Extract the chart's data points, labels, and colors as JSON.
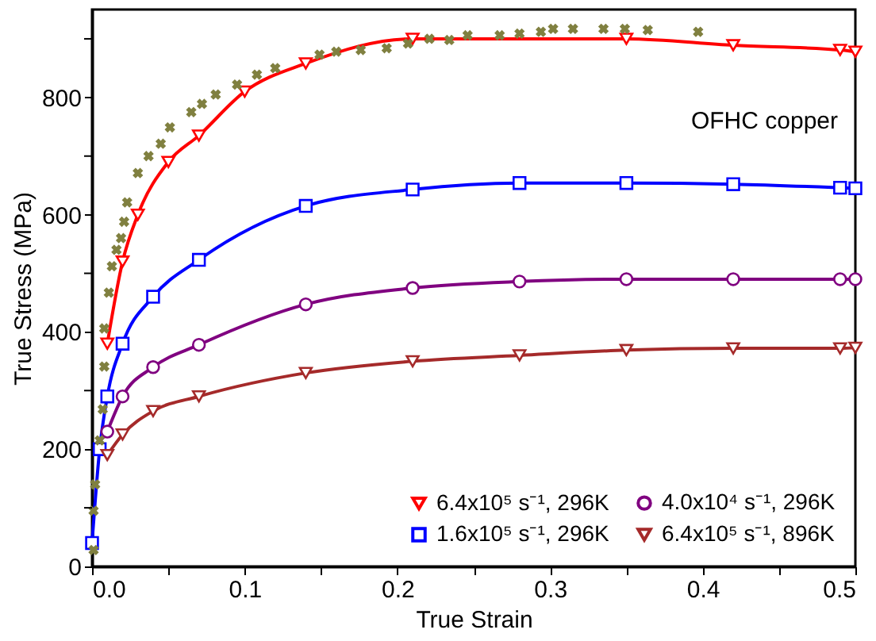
{
  "chart_data": {
    "type": "line",
    "xlabel": "True Strain",
    "ylabel": "True Stress (MPa)",
    "annotations": [
      "OFHC copper"
    ],
    "xlim": [
      0,
      0.5
    ],
    "ylim": [
      0,
      950
    ],
    "xticks": [
      {
        "value": 0,
        "label": "0.0"
      },
      {
        "value": 0.05,
        "label": null
      },
      0.1,
      {
        "value": 0.15,
        "label": null
      },
      0.2,
      {
        "value": 0.25,
        "label": null
      },
      0.3,
      {
        "value": 0.35,
        "label": null
      },
      0.4,
      {
        "value": 0.45,
        "label": null
      },
      0.5
    ],
    "line_style": "solid",
    "yticks": [
      0,
      {
        "value": 100,
        "label": null
      },
      200,
      {
        "value": 300,
        "label": null
      },
      400,
      {
        "value": 500,
        "label": null
      },
      600,
      {
        "value": 700,
        "label": null
      },
      800,
      {
        "value": 900,
        "label": null
      }
    ],
    "grid": false,
    "legend": "bottom right",
    "series": [
      {
        "name": "6.4x10⁵ s⁻¹, 296K",
        "color": "#ff0000",
        "marker": "triangle",
        "x": [
          0.01,
          0.02,
          0.03,
          0.05,
          0.07,
          0.1,
          0.14,
          0.21,
          0.35,
          0.42,
          0.49,
          0.5
        ],
        "values": [
          380,
          520,
          600,
          690,
          735,
          810,
          858,
          900,
          900,
          889,
          881,
          878
        ]
      },
      {
        "name": "1.6x10⁵ s⁻¹, 296K",
        "color": "#0000ff",
        "marker": "square",
        "x": [
          0,
          0.005,
          0.01,
          0.02,
          0.04,
          0.07,
          0.14,
          0.21,
          0.28,
          0.35,
          0.42,
          0.49,
          0.5
        ],
        "values": [
          40,
          200,
          290,
          380,
          460,
          523,
          615,
          643,
          654,
          654,
          652,
          646,
          645
        ]
      },
      {
        "name": "4.0x10⁴ s⁻¹, 296K",
        "color": "#800080",
        "marker": "circle",
        "x": [
          0.01,
          0.02,
          0.04,
          0.07,
          0.14,
          0.21,
          0.28,
          0.35,
          0.42,
          0.49,
          0.5
        ],
        "values": [
          230,
          290,
          340,
          378,
          447,
          475,
          486,
          490,
          490,
          490,
          490
        ]
      },
      {
        "name": "6.4x10⁵ s⁻¹, 896K",
        "color": "#a52a2a",
        "marker": "triangle",
        "x": [
          0.01,
          0.02,
          0.04,
          0.07,
          0.14,
          0.21,
          0.28,
          0.35,
          0.42,
          0.49,
          0.5
        ],
        "values": [
          190,
          225,
          265,
          290,
          330,
          350,
          360,
          369,
          372,
          372,
          373
        ]
      },
      {
        "type": "scatter",
        "color": "#808040",
        "marker": "cross",
        "x": [
          0.001,
          0.001,
          0.002,
          0.005,
          0.007,
          0.008,
          0.008,
          0.011,
          0.013,
          0.016,
          0.019,
          0.021,
          0.023,
          0.03,
          0.037,
          0.045,
          0.051,
          0.065,
          0.072,
          0.081,
          0.095,
          0.108,
          0.12,
          0.149,
          0.16,
          0.176,
          0.193,
          0.207,
          0.221,
          0.234,
          0.246,
          0.267,
          0.28,
          0.294,
          0.302,
          0.315,
          0.335,
          0.349,
          0.364,
          0.397
        ],
        "values": [
          28,
          95,
          140,
          215,
          268,
          341,
          406,
          467,
          512,
          540,
          560,
          588,
          621,
          671,
          700,
          721,
          749,
          775,
          789,
          805,
          822,
          839,
          850,
          873,
          878,
          881,
          884,
          892,
          900,
          898,
          906,
          906,
          909,
          912,
          917,
          917,
          917,
          917,
          915,
          912
        ]
      }
    ]
  }
}
